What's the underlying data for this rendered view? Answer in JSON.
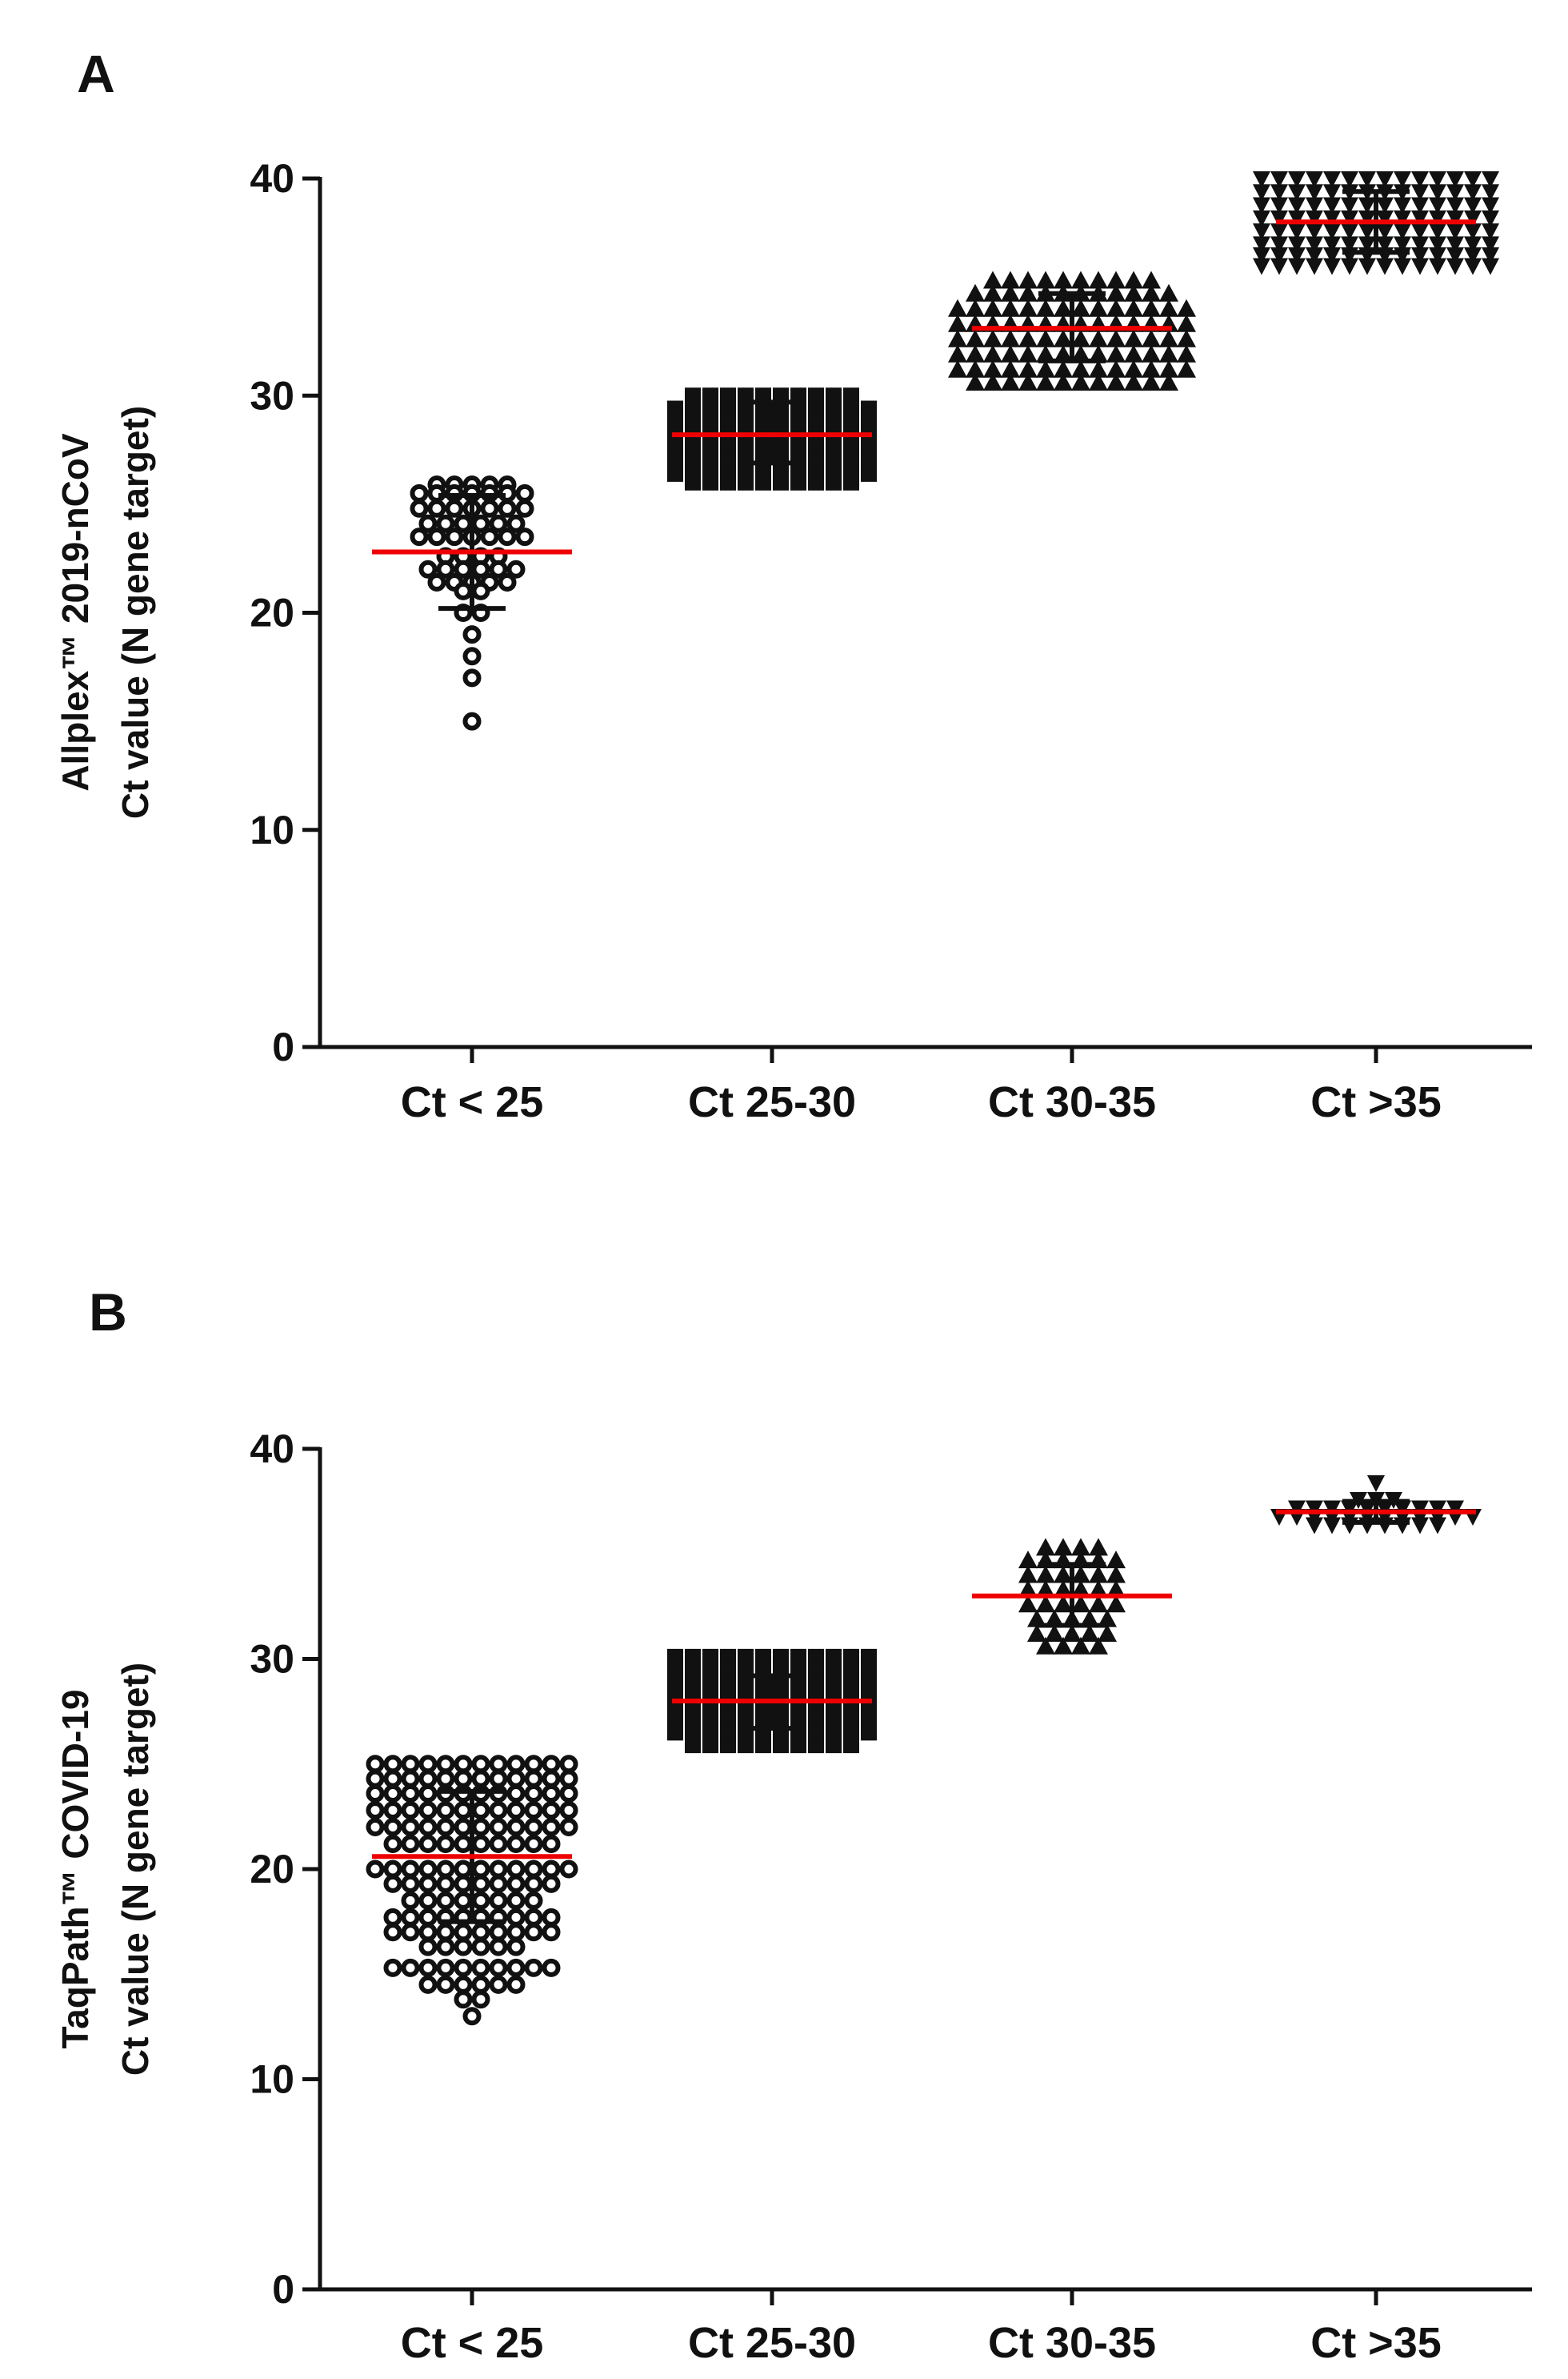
{
  "chart_data": [
    {
      "panel": "A",
      "type": "scatter",
      "ylabel_line1": "Allplex™ 2019-nCoV",
      "ylabel_line2": "Ct value (N gene target)",
      "ylim": [
        0,
        40
      ],
      "yticks": [
        "0",
        "10",
        "20",
        "30",
        "40"
      ],
      "categories": [
        "Ct < 25",
        "Ct 25-30",
        "Ct 30-35",
        "Ct >35"
      ],
      "groups": [
        {
          "marker": "circle",
          "mean": 22.8,
          "sd_low": 20.2,
          "sd_high": 25.4,
          "rows": [
            {
              "y": 25.9,
              "n": 5
            },
            {
              "y": 25.5,
              "n": 7
            },
            {
              "y": 24.8,
              "n": 7
            },
            {
              "y": 24.1,
              "n": 6
            },
            {
              "y": 23.5,
              "n": 7
            },
            {
              "y": 22.6,
              "n": 4
            },
            {
              "y": 22.0,
              "n": 6
            },
            {
              "y": 21.4,
              "n": 5
            },
            {
              "y": 21.0,
              "n": 2
            },
            {
              "y": 20.0,
              "n": 2
            },
            {
              "y": 19.0,
              "n": 1
            },
            {
              "y": 18.0,
              "n": 1
            },
            {
              "y": 17.0,
              "n": 1
            },
            {
              "y": 15.0,
              "n": 1
            }
          ]
        },
        {
          "marker": "square",
          "mean": 28.2,
          "sd_low": 26.9,
          "sd_high": 29.7,
          "rows": [
            {
              "y": 30.0,
              "n": 10
            },
            {
              "y": 29.4,
              "n": 12
            },
            {
              "y": 28.8,
              "n": 12
            },
            {
              "y": 28.2,
              "n": 12
            },
            {
              "y": 27.6,
              "n": 12
            },
            {
              "y": 27.0,
              "n": 12
            },
            {
              "y": 26.4,
              "n": 12
            },
            {
              "y": 26.0,
              "n": 10
            }
          ]
        },
        {
          "marker": "triangle-up",
          "mean": 33.1,
          "sd_low": 31.6,
          "sd_high": 34.7,
          "rows": [
            {
              "y": 35.3,
              "n": 10
            },
            {
              "y": 34.7,
              "n": 12
            },
            {
              "y": 34.0,
              "n": 14
            },
            {
              "y": 33.3,
              "n": 14
            },
            {
              "y": 32.6,
              "n": 14
            },
            {
              "y": 31.9,
              "n": 14
            },
            {
              "y": 31.2,
              "n": 14
            },
            {
              "y": 30.6,
              "n": 12
            }
          ]
        },
        {
          "marker": "triangle-down",
          "mean": 38.0,
          "sd_low": 36.6,
          "sd_high": 39.4,
          "rows": [
            {
              "y": 40.0,
              "n": 14
            },
            {
              "y": 39.4,
              "n": 14
            },
            {
              "y": 38.8,
              "n": 14
            },
            {
              "y": 38.2,
              "n": 14
            },
            {
              "y": 37.6,
              "n": 14
            },
            {
              "y": 37.0,
              "n": 14
            },
            {
              "y": 36.5,
              "n": 14
            },
            {
              "y": 36.0,
              "n": 14
            }
          ]
        }
      ]
    },
    {
      "panel": "B",
      "type": "scatter",
      "ylabel_line1": "TaqPath™ COVID-19",
      "ylabel_line2": "Ct value (N gene target)",
      "ylim": [
        0,
        40
      ],
      "yticks": [
        "0",
        "10",
        "20",
        "30",
        "40"
      ],
      "categories": [
        "Ct < 25",
        "Ct 25-30",
        "Ct 30-35",
        "Ct >35"
      ],
      "groups": [
        {
          "marker": "circle",
          "mean": 20.6,
          "sd_low": 17.5,
          "sd_high": 23.7,
          "rows": [
            {
              "y": 25.0,
              "n": 12
            },
            {
              "y": 24.3,
              "n": 12
            },
            {
              "y": 23.6,
              "n": 12
            },
            {
              "y": 22.8,
              "n": 12
            },
            {
              "y": 22.0,
              "n": 12
            },
            {
              "y": 21.2,
              "n": 10
            },
            {
              "y": 20.0,
              "n": 12
            },
            {
              "y": 19.3,
              "n": 10
            },
            {
              "y": 18.5,
              "n": 8
            },
            {
              "y": 17.7,
              "n": 10
            },
            {
              "y": 17.0,
              "n": 10
            },
            {
              "y": 16.3,
              "n": 6
            },
            {
              "y": 15.3,
              "n": 10
            },
            {
              "y": 14.5,
              "n": 6
            },
            {
              "y": 13.8,
              "n": 2
            },
            {
              "y": 13.0,
              "n": 1
            }
          ]
        },
        {
          "marker": "square",
          "mean": 28.0,
          "sd_low": 26.7,
          "sd_high": 29.2,
          "rows": [
            {
              "y": 30.1,
              "n": 12
            },
            {
              "y": 29.5,
              "n": 12
            },
            {
              "y": 28.9,
              "n": 12
            },
            {
              "y": 28.3,
              "n": 12
            },
            {
              "y": 27.7,
              "n": 12
            },
            {
              "y": 27.1,
              "n": 12
            },
            {
              "y": 26.5,
              "n": 12
            },
            {
              "y": 25.9,
              "n": 10
            }
          ]
        },
        {
          "marker": "triangle-up",
          "mean": 33.0,
          "sd_low": 31.6,
          "sd_high": 34.5,
          "rows": [
            {
              "y": 35.3,
              "n": 4
            },
            {
              "y": 34.7,
              "n": 6
            },
            {
              "y": 34.0,
              "n": 6
            },
            {
              "y": 33.3,
              "n": 6
            },
            {
              "y": 32.6,
              "n": 6
            },
            {
              "y": 31.9,
              "n": 5
            },
            {
              "y": 31.2,
              "n": 5
            },
            {
              "y": 30.6,
              "n": 4
            }
          ]
        },
        {
          "marker": "triangle-down",
          "mean": 37.0,
          "sd_low": 36.5,
          "sd_high": 37.5,
          "rows": [
            {
              "y": 38.4,
              "n": 1
            },
            {
              "y": 37.6,
              "n": 3
            },
            {
              "y": 37.2,
              "n": 10
            },
            {
              "y": 36.8,
              "n": 12
            },
            {
              "y": 36.4,
              "n": 8
            }
          ]
        }
      ]
    }
  ]
}
